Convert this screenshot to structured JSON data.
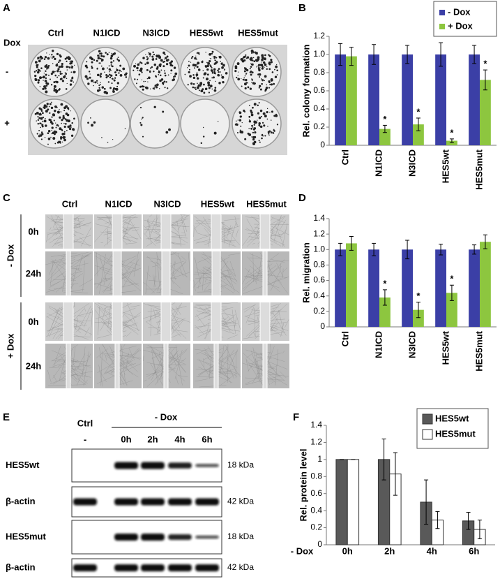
{
  "panels": {
    "A": {
      "label": "A",
      "row_title": "Dox",
      "columns": [
        "Ctrl",
        "N1ICD",
        "N3ICD",
        "HES5wt",
        "HES5mut"
      ],
      "rows": [
        "-",
        "+"
      ]
    },
    "C": {
      "label": "C",
      "columns": [
        "Ctrl",
        "N1ICD",
        "N3ICD",
        "HES5wt",
        "HES5mut"
      ],
      "groups": [
        {
          "name": "- Dox",
          "rows": [
            "0h",
            "24h"
          ]
        },
        {
          "name": "+ Dox",
          "rows": [
            "0h",
            "24h"
          ]
        }
      ]
    },
    "E": {
      "label": "E",
      "ctrl": "Ctrl",
      "ctrl_lane": "-",
      "treatment": "- Dox",
      "lanes": [
        "0h",
        "2h",
        "4h",
        "6h"
      ],
      "blots": [
        {
          "name": "HES5wt",
          "size": "18 kDa"
        },
        {
          "name": "β-actin",
          "size": "42 kDa"
        },
        {
          "name": "HES5mut",
          "size": "18 kDa"
        },
        {
          "name": "β-actin",
          "size": "42 kDa"
        }
      ]
    }
  },
  "chart_data": [
    {
      "type": "bar",
      "panel_label": "B",
      "ylabel": "Rel. colony formation",
      "categories": [
        "Ctrl",
        "N1ICD",
        "N3ICD",
        "HES5wt",
        "HES5mut"
      ],
      "series": [
        {
          "name": "- Dox",
          "color": "#3b3fa6",
          "values": [
            1,
            1,
            1,
            1,
            1
          ],
          "errors": [
            0.12,
            0.11,
            0.1,
            0.13,
            0.1
          ]
        },
        {
          "name": "+ Dox",
          "color": "#8dc63f",
          "values": [
            0.98,
            0.18,
            0.23,
            0.05,
            0.72
          ],
          "errors": [
            0.1,
            0.04,
            0.07,
            0.02,
            0.11
          ],
          "significance": [
            null,
            "*",
            "*",
            "*",
            "*"
          ]
        }
      ],
      "ylim": [
        0,
        1.2
      ],
      "yticks": [
        0,
        0.2,
        0.4,
        0.6,
        0.8,
        {
          "value": 1,
          "label": "1.0"
        },
        1.2
      ],
      "legend": "top-right",
      "grid": false
    },
    {
      "type": "bar",
      "panel_label": "D",
      "ylabel": "Rel. migration",
      "categories": [
        "Ctrl",
        "N1ICD",
        "N3ICD",
        "HES5wt",
        "HES5mut"
      ],
      "series": [
        {
          "name": "- Dox",
          "color": "#3b3fa6",
          "values": [
            1,
            1,
            1,
            1,
            1
          ],
          "errors": [
            0.08,
            0.08,
            0.12,
            0.07,
            0.06
          ]
        },
        {
          "name": "+ Dox",
          "color": "#8dc63f",
          "values": [
            1.08,
            0.38,
            0.22,
            0.44,
            1.1
          ],
          "errors": [
            0.09,
            0.1,
            0.1,
            0.1,
            0.09
          ],
          "significance": [
            null,
            "*",
            "*",
            "*",
            null
          ]
        }
      ],
      "ylim": [
        0,
        1.4
      ],
      "yticks": [
        0,
        0.2,
        0.4,
        0.6,
        0.8,
        {
          "value": 1,
          "label": "1.0"
        },
        1.2,
        1.4
      ],
      "legend": "none",
      "grid": false
    },
    {
      "type": "bar",
      "panel_label": "F",
      "ylabel": "Rel. protein level",
      "xlabel": "- Dox",
      "categories": [
        "0h",
        "2h",
        "4h",
        "6h"
      ],
      "series": [
        {
          "name": "HES5wt",
          "color": "#595959",
          "values": [
            1,
            1,
            0.5,
            0.28
          ],
          "errors": [
            0,
            0.24,
            0.26,
            0.1
          ]
        },
        {
          "name": "HES5mut",
          "color": "#ffffff",
          "values": [
            1,
            0.83,
            0.29,
            0.18
          ],
          "errors": [
            0,
            0.25,
            0.1,
            0.11
          ]
        }
      ],
      "ylim": [
        0,
        1.4
      ],
      "yticks": [
        0,
        0.2,
        0.4,
        0.6,
        0.8,
        1,
        1.2,
        1.4
      ],
      "legend": "top-right",
      "grid": false
    }
  ]
}
